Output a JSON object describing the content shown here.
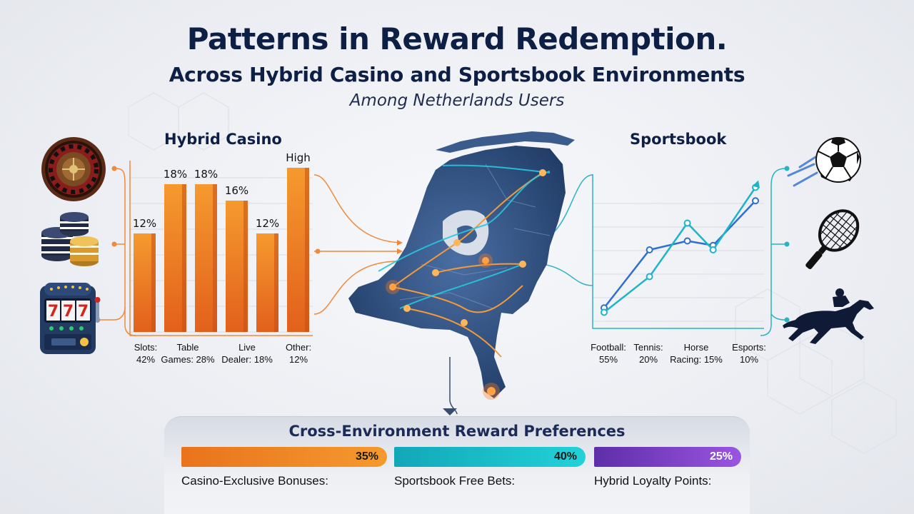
{
  "header": {
    "title": "Patterns in Reward Redemption.",
    "subtitle": "Across Hybrid Casino and Sportsbook Environments",
    "tagline": "Among Netherlands Users"
  },
  "colors": {
    "navy": "#0e1f45",
    "casino_orange": "#f07a1c",
    "sports_teal": "#1fb4c8",
    "sports_blue": "#2f6fcf",
    "hybrid_purple": "#7b3fc4",
    "map_blue": "#2e4f7f"
  },
  "icons": {
    "casino": [
      "roulette-icon",
      "poker-chips-icon",
      "slot-machine-icon"
    ],
    "sports": [
      "soccer-ball-icon",
      "tennis-racket-icon",
      "horse-racing-icon"
    ],
    "map": "netherlands-map-icon"
  },
  "chart_data": [
    {
      "type": "bar",
      "title": "Hybrid Casino",
      "bar_labels": [
        "12%",
        "18%",
        "18%",
        "16%",
        "12%",
        "High"
      ],
      "values": [
        12,
        18,
        18,
        16,
        12,
        20
      ],
      "category_labels": [
        {
          "line1": "Slots:",
          "line2": "42%"
        },
        {
          "line1": "Table",
          "line2": "Games: 28%"
        },
        {
          "line1": "Live",
          "line2": "Dealer: 18%"
        },
        {
          "line1": "Other:",
          "line2": "12%"
        }
      ],
      "color": "#f07a1c",
      "grid": true
    },
    {
      "type": "line",
      "title": "Sportsbook",
      "series": [
        {
          "values": [
            3,
            16,
            18,
            17,
            27
          ]
        },
        {
          "values": [
            2,
            10,
            22,
            16,
            30
          ]
        }
      ],
      "category_labels": [
        {
          "line1": "Football:",
          "line2": "55%"
        },
        {
          "line1": "Tennis:",
          "line2": "20%"
        },
        {
          "line1": "Horse",
          "line2": "Racing: 15%"
        },
        {
          "line1": "Esports:",
          "line2": "10%"
        }
      ],
      "colors": [
        "#2f6fcf",
        "#1fb4c8"
      ],
      "grid": true
    },
    {
      "type": "bar",
      "title": "Cross-Environment Reward Preferences",
      "categories": [
        "Casino-Exclusive Bonuses:",
        "Sportsbook Free Bets:",
        "Hybrid Loyalty Points:"
      ],
      "values": [
        35,
        40,
        25
      ],
      "value_labels": [
        "35%",
        "40%",
        "25%"
      ],
      "colors": [
        "#f07a1c",
        "#1fc6cf",
        "#7b3fc4"
      ],
      "orientation": "horizontal"
    }
  ]
}
